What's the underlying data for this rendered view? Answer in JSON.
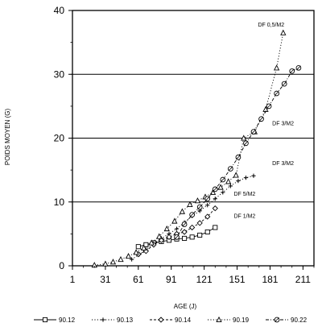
{
  "chart_data": {
    "type": "line",
    "ylabel": "POIDS MOYEN (G)",
    "xlabel": "AGE (J)",
    "xlim": [
      1,
      221
    ],
    "ylim": [
      0,
      40
    ],
    "x_ticks": [
      1,
      31,
      61,
      91,
      121,
      151,
      181,
      211
    ],
    "y_ticks": [
      0,
      10,
      20,
      30,
      40
    ],
    "hlines": [
      10,
      20,
      30
    ],
    "series": [
      {
        "name": "90.12",
        "marker": "square",
        "dash": "none",
        "points": [
          [
            61,
            3.0
          ],
          [
            68,
            3.3
          ],
          [
            75,
            3.6
          ],
          [
            82,
            3.8
          ],
          [
            89,
            4.0
          ],
          [
            96,
            4.2
          ],
          [
            103,
            4.3
          ],
          [
            110,
            4.5
          ],
          [
            117,
            4.8
          ],
          [
            124,
            5.3
          ],
          [
            131,
            6.0
          ]
        ]
      },
      {
        "name": "90.13",
        "marker": "plus",
        "dash": "dot",
        "points": [
          [
            55,
            1.0
          ],
          [
            62,
            1.8
          ],
          [
            68,
            2.5
          ],
          [
            75,
            3.5
          ],
          [
            82,
            4.3
          ],
          [
            89,
            5.0
          ],
          [
            96,
            5.8
          ],
          [
            103,
            6.8
          ],
          [
            110,
            7.8
          ],
          [
            117,
            8.6
          ],
          [
            124,
            9.5
          ],
          [
            131,
            10.5
          ],
          [
            138,
            11.5
          ],
          [
            145,
            12.5
          ],
          [
            152,
            13.3
          ],
          [
            159,
            13.8
          ],
          [
            166,
            14.1
          ]
        ]
      },
      {
        "name": "90.14",
        "marker": "diamond",
        "dash": "dash",
        "points": [
          [
            61,
            1.8
          ],
          [
            68,
            2.3
          ],
          [
            75,
            3.3
          ],
          [
            82,
            4.0
          ],
          [
            89,
            4.5
          ],
          [
            96,
            5.0
          ],
          [
            103,
            5.3
          ],
          [
            110,
            6.0
          ],
          [
            117,
            6.7
          ],
          [
            124,
            7.7
          ],
          [
            131,
            9.0
          ]
        ]
      },
      {
        "name": "90.19",
        "marker": "triangle",
        "dash": "dot",
        "points": [
          [
            21,
            0.1
          ],
          [
            31,
            0.3
          ],
          [
            38,
            0.6
          ],
          [
            45,
            1.0
          ],
          [
            52,
            1.5
          ],
          [
            59,
            2.1
          ],
          [
            66,
            2.8
          ],
          [
            73,
            3.6
          ],
          [
            80,
            4.6
          ],
          [
            87,
            5.8
          ],
          [
            94,
            7.0
          ],
          [
            101,
            8.5
          ],
          [
            108,
            9.6
          ],
          [
            115,
            10.2
          ],
          [
            122,
            10.8
          ],
          [
            129,
            11.5
          ],
          [
            136,
            12.3
          ],
          [
            143,
            13.2
          ],
          [
            150,
            14.2
          ],
          [
            157,
            20.0
          ],
          [
            167,
            21.0
          ],
          [
            177,
            24.5
          ],
          [
            187,
            31.0
          ],
          [
            193,
            36.5
          ]
        ]
      },
      {
        "name": "90.22",
        "marker": "circle",
        "dash": "dashdot",
        "points": [
          [
            96,
            4.5
          ],
          [
            103,
            6.5
          ],
          [
            110,
            8.0
          ],
          [
            117,
            9.2
          ],
          [
            124,
            10.5
          ],
          [
            131,
            12.0
          ],
          [
            138,
            13.5
          ],
          [
            145,
            15.2
          ],
          [
            152,
            17.0
          ],
          [
            159,
            19.2
          ],
          [
            166,
            21.0
          ],
          [
            173,
            23.0
          ],
          [
            180,
            25.0
          ],
          [
            187,
            27.0
          ],
          [
            194,
            28.5
          ],
          [
            201,
            30.5
          ],
          [
            207,
            31.0
          ]
        ]
      }
    ],
    "annotations": [
      {
        "text": "DF 0,5/M2",
        "x": 170,
        "y": 37.5
      },
      {
        "text": "DF 3/M2",
        "x": 183,
        "y": 22.0
      },
      {
        "text": "DF 3/M2",
        "x": 183,
        "y": 15.8
      },
      {
        "text": "DF 5/M2",
        "x": 148,
        "y": 11.0
      },
      {
        "text": "DF 1/M2",
        "x": 148,
        "y": 7.5
      }
    ]
  }
}
